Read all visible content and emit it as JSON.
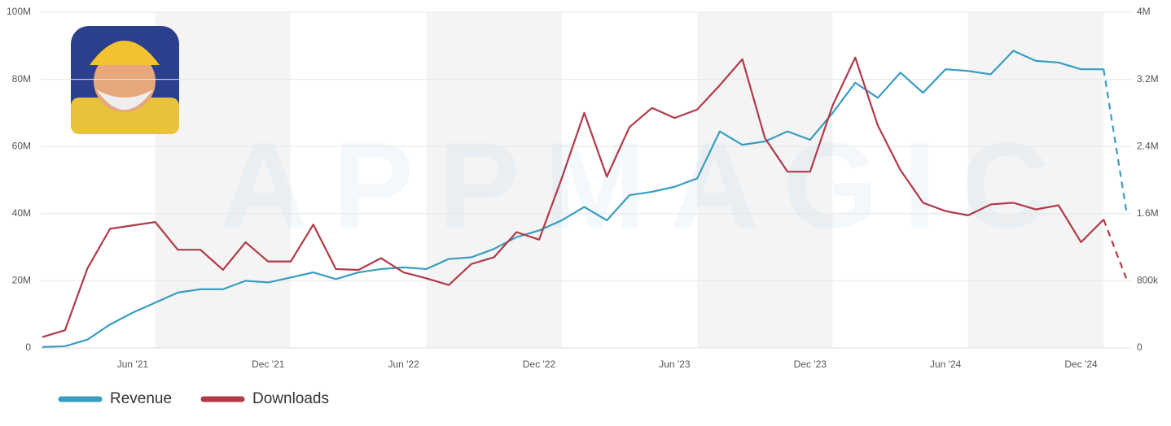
{
  "chart_data": {
    "type": "line",
    "watermark": "APPMAGIC",
    "categories": [
      null,
      null,
      null,
      null,
      "Jun '21",
      null,
      null,
      null,
      null,
      null,
      "Dec '21",
      null,
      null,
      null,
      null,
      null,
      "Jun '22",
      null,
      null,
      null,
      null,
      null,
      "Dec '22",
      null,
      null,
      null,
      null,
      null,
      "Jun '23",
      null,
      null,
      null,
      null,
      null,
      "Dec '23",
      null,
      null,
      null,
      null,
      null,
      "Jun '24",
      null,
      null,
      null,
      null,
      null,
      "Dec '24",
      null,
      null
    ],
    "series": [
      {
        "name": "Revenue",
        "color": "#3a9cc0",
        "axis": "y",
        "values": [
          300000,
          500000,
          2500000,
          7000000,
          10500000,
          13500000,
          16500000,
          17500000,
          17500000,
          20000000,
          19500000,
          21000000,
          22500000,
          20500000,
          22500000,
          23500000,
          24000000,
          23500000,
          26500000,
          27000000,
          29500000,
          33000000,
          35000000,
          38000000,
          42000000,
          38000000,
          45500000,
          46500000,
          48000000,
          50500000,
          64500000,
          60500000,
          61500000,
          64500000,
          62000000,
          70000000,
          79000000,
          74500000,
          82000000,
          76000000,
          83000000,
          82500000,
          81500000,
          88500000,
          85500000,
          85000000,
          83000000,
          83000000,
          41000000
        ]
      },
      {
        "name": "Downloads",
        "color": "#b03a48",
        "axis": "y2",
        "values": [
          130000,
          210000,
          950000,
          1420000,
          1460000,
          1500000,
          1170000,
          1170000,
          930000,
          1260000,
          1030000,
          1030000,
          1470000,
          940000,
          930000,
          1070000,
          900000,
          830000,
          750000,
          1000000,
          1080000,
          1380000,
          1290000,
          2020000,
          2800000,
          2040000,
          2630000,
          2860000,
          2740000,
          2840000,
          3130000,
          3440000,
          2500000,
          2100000,
          2100000,
          2890000,
          3460000,
          2650000,
          2120000,
          1730000,
          1630000,
          1580000,
          1710000,
          1730000,
          1650000,
          1700000,
          1260000,
          1530000,
          830000
        ]
      }
    ],
    "ylim": [
      0,
      100000000
    ],
    "yticks": [
      0,
      {
        "value": 20000000,
        "label": "20M"
      },
      {
        "value": 40000000,
        "label": "40M"
      },
      {
        "value": 60000000,
        "label": "60M"
      },
      {
        "value": 80000000,
        "label": "80M"
      },
      {
        "value": 100000000,
        "label": "100M"
      }
    ],
    "y2lim": [
      0,
      4000000
    ],
    "y2ticks": [
      0,
      {
        "value": 800000,
        "label": "800k"
      },
      {
        "value": 1600000,
        "label": "1.6M"
      },
      {
        "value": 2400000,
        "label": "2.4M"
      },
      {
        "value": 3200000,
        "label": "3.2M"
      },
      {
        "value": 4000000,
        "label": "4M"
      }
    ],
    "grid": true,
    "legend": "bottom"
  }
}
